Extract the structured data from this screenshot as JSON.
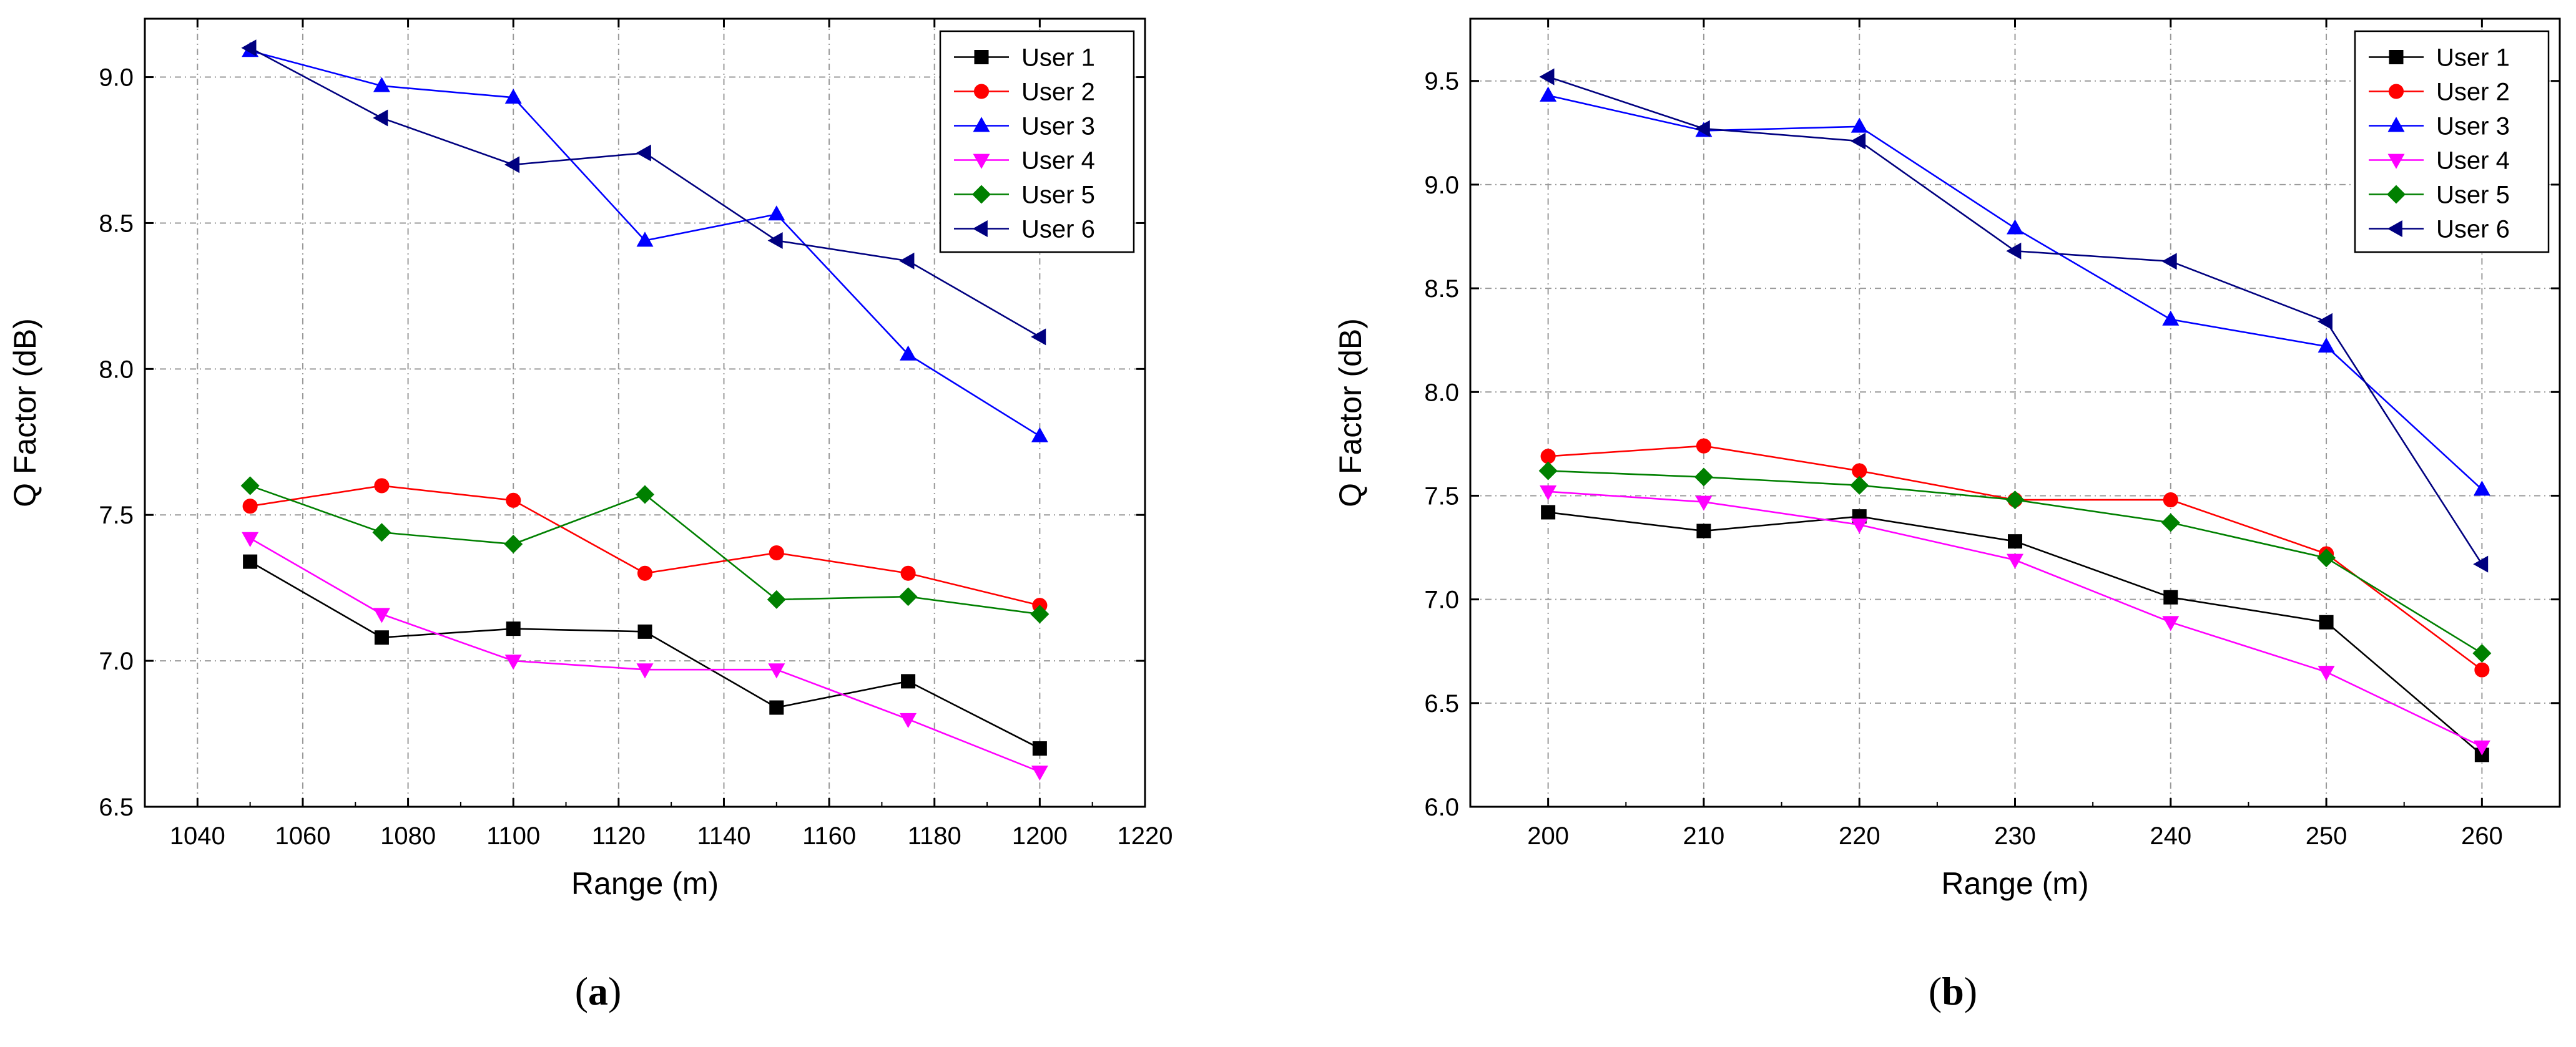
{
  "chart_data": [
    {
      "type": "line",
      "panel_label": "a",
      "title": "",
      "xlabel": "Range (m)",
      "ylabel": "Q Factor (dB)",
      "xlim": [
        1030,
        1220
      ],
      "ylim": [
        6.5,
        9.2
      ],
      "xticks": [
        1040,
        1060,
        1080,
        1100,
        1120,
        1140,
        1160,
        1180,
        1200,
        1220
      ],
      "yticks": [
        6.5,
        7.0,
        7.5,
        8.0,
        8.5,
        9.0
      ],
      "grid": true,
      "legend_position": "top-right",
      "x": [
        1050,
        1075,
        1100,
        1125,
        1150,
        1175,
        1200
      ],
      "series": [
        {
          "name": "User 1",
          "color": "#000000",
          "marker": "square",
          "values": [
            7.34,
            7.08,
            7.11,
            7.1,
            6.84,
            6.93,
            6.7
          ]
        },
        {
          "name": "User 2",
          "color": "#ff0000",
          "marker": "circle",
          "values": [
            7.53,
            7.6,
            7.55,
            7.3,
            7.37,
            7.3,
            7.19
          ]
        },
        {
          "name": "User 3",
          "color": "#0000ff",
          "marker": "triangle-up",
          "values": [
            9.09,
            8.97,
            8.93,
            8.44,
            8.53,
            8.05,
            7.77
          ]
        },
        {
          "name": "User 4",
          "color": "#ff00ff",
          "marker": "triangle-down",
          "values": [
            7.42,
            7.16,
            7.0,
            6.97,
            6.97,
            6.8,
            6.62
          ]
        },
        {
          "name": "User 5",
          "color": "#008000",
          "marker": "diamond",
          "values": [
            7.6,
            7.44,
            7.4,
            7.57,
            7.21,
            7.22,
            7.16
          ]
        },
        {
          "name": "User 6",
          "color": "#000080",
          "marker": "triangle-left",
          "values": [
            9.1,
            8.86,
            8.7,
            8.74,
            8.44,
            8.37,
            8.11
          ]
        }
      ]
    },
    {
      "type": "line",
      "panel_label": "b",
      "title": "",
      "xlabel": "Range (m)",
      "ylabel": "Q Factor (dB)",
      "xlim": [
        195,
        265
      ],
      "ylim": [
        6.0,
        9.8
      ],
      "xticks": [
        200,
        210,
        220,
        230,
        240,
        250,
        260
      ],
      "yticks": [
        6.0,
        6.5,
        7.0,
        7.5,
        8.0,
        8.5,
        9.0,
        9.5
      ],
      "grid": true,
      "legend_position": "top-right",
      "x": [
        200,
        210,
        220,
        230,
        240,
        250,
        260
      ],
      "series": [
        {
          "name": "User 1",
          "color": "#000000",
          "marker": "square",
          "values": [
            7.42,
            7.33,
            7.4,
            7.28,
            7.01,
            6.89,
            6.25
          ]
        },
        {
          "name": "User 2",
          "color": "#ff0000",
          "marker": "circle",
          "values": [
            7.69,
            7.74,
            7.62,
            7.48,
            7.48,
            7.22,
            6.66
          ]
        },
        {
          "name": "User 3",
          "color": "#0000ff",
          "marker": "triangle-up",
          "values": [
            9.43,
            9.26,
            9.28,
            8.79,
            8.35,
            8.22,
            7.53
          ]
        },
        {
          "name": "User 4",
          "color": "#ff00ff",
          "marker": "triangle-down",
          "values": [
            7.52,
            7.47,
            7.36,
            7.19,
            6.89,
            6.65,
            6.29
          ]
        },
        {
          "name": "User 5",
          "color": "#008000",
          "marker": "diamond",
          "values": [
            7.62,
            7.59,
            7.55,
            7.48,
            7.37,
            7.2,
            6.74
          ]
        },
        {
          "name": "User 6",
          "color": "#000080",
          "marker": "triangle-left",
          "values": [
            9.52,
            9.27,
            9.21,
            8.68,
            8.63,
            8.34,
            7.17
          ]
        }
      ]
    }
  ],
  "captions": [
    {
      "open": "(",
      "letter": "a",
      "close": ")"
    },
    {
      "open": "(",
      "letter": "b",
      "close": ")"
    }
  ]
}
